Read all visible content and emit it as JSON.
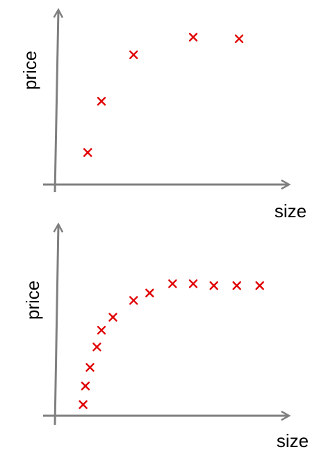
{
  "colors": {
    "axis": "#7f7f7f",
    "marker": "#e00000",
    "text": "#000000"
  },
  "chart_data": [
    {
      "type": "scatter",
      "marker": "x",
      "title": "",
      "xlabel": "size",
      "ylabel": "price",
      "ticks": false,
      "grid": false,
      "xlim": [
        0,
        10
      ],
      "ylim": [
        0,
        10
      ],
      "points": [
        {
          "x": 1.4,
          "y": 2.0
        },
        {
          "x": 2.0,
          "y": 5.2
        },
        {
          "x": 3.4,
          "y": 8.1
        },
        {
          "x": 6.0,
          "y": 9.2
        },
        {
          "x": 8.0,
          "y": 9.1
        }
      ]
    },
    {
      "type": "scatter",
      "marker": "x",
      "title": "",
      "xlabel": "size",
      "ylabel": "price",
      "ticks": false,
      "grid": false,
      "xlim": [
        0,
        10
      ],
      "ylim": [
        0,
        10
      ],
      "points": [
        {
          "x": 1.2,
          "y": 0.6
        },
        {
          "x": 1.3,
          "y": 1.6
        },
        {
          "x": 1.5,
          "y": 2.6
        },
        {
          "x": 1.8,
          "y": 3.7
        },
        {
          "x": 2.0,
          "y": 4.6
        },
        {
          "x": 2.5,
          "y": 5.3
        },
        {
          "x": 3.4,
          "y": 6.2
        },
        {
          "x": 4.1,
          "y": 6.6
        },
        {
          "x": 5.1,
          "y": 7.1
        },
        {
          "x": 6.0,
          "y": 7.1
        },
        {
          "x": 6.9,
          "y": 7.0
        },
        {
          "x": 7.9,
          "y": 7.0
        },
        {
          "x": 8.9,
          "y": 7.0
        }
      ]
    }
  ]
}
